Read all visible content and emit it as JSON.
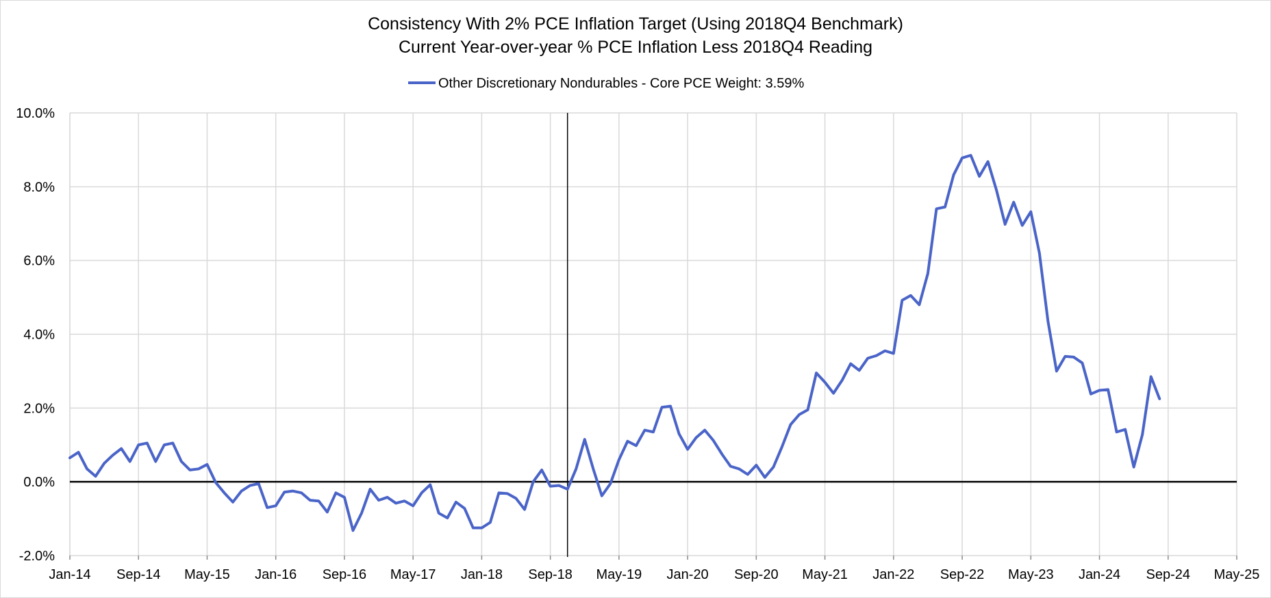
{
  "chart_data": {
    "type": "line",
    "title": "Consistency With 2% PCE Inflation Target (Using 2018Q4 Benchmark)",
    "subtitle": "Current Year-over-year % PCE Inflation Less 2018Q4 Reading",
    "legend_position": "top-center",
    "grid": true,
    "x_start": "2014-01",
    "x_end": "2025-05",
    "ylim": [
      -2,
      10
    ],
    "y_ticks": [
      -2,
      0,
      2,
      4,
      6,
      8,
      10
    ],
    "y_tick_labels": [
      "-2.0%",
      "0.0%",
      "2.0%",
      "4.0%",
      "6.0%",
      "8.0%",
      "10.0%"
    ],
    "x_tick_labels": [
      "Jan-14",
      "Sep-14",
      "May-15",
      "Jan-16",
      "Sep-16",
      "May-17",
      "Jan-18",
      "Sep-18",
      "May-19",
      "Jan-20",
      "Sep-20",
      "May-21",
      "Jan-22",
      "Sep-22",
      "May-23",
      "Jan-24",
      "Sep-24",
      "May-25"
    ],
    "x_tick_dates": [
      "2014-01",
      "2014-09",
      "2015-05",
      "2016-01",
      "2016-09",
      "2017-05",
      "2018-01",
      "2018-09",
      "2019-05",
      "2020-01",
      "2020-09",
      "2021-05",
      "2022-01",
      "2022-09",
      "2023-05",
      "2024-01",
      "2024-09",
      "2025-05"
    ],
    "reference_line_date": "2018-11",
    "colors": {
      "series": "#4a64c8",
      "grid": "#d9d9d9",
      "axis": "#000000"
    },
    "series": [
      {
        "name": "Other Discretionary Nondurables - Core PCE Weight: 3.59%",
        "values": [
          0.65,
          0.8,
          0.35,
          0.15,
          0.5,
          0.72,
          0.9,
          0.55,
          1.0,
          1.05,
          0.55,
          1.0,
          1.05,
          0.55,
          0.32,
          0.35,
          0.47,
          -0.02,
          -0.3,
          -0.55,
          -0.25,
          -0.1,
          -0.05,
          -0.7,
          -0.65,
          -0.28,
          -0.25,
          -0.3,
          -0.5,
          -0.52,
          -0.82,
          -0.3,
          -0.42,
          -1.32,
          -0.85,
          -0.2,
          -0.5,
          -0.42,
          -0.58,
          -0.52,
          -0.65,
          -0.3,
          -0.08,
          -0.85,
          -0.98,
          -0.55,
          -0.72,
          -1.25,
          -1.25,
          -1.1,
          -0.3,
          -0.32,
          -0.45,
          -0.75,
          0.0,
          0.32,
          -0.12,
          -0.1,
          -0.2,
          0.35,
          1.15,
          0.35,
          -0.38,
          -0.05,
          0.6,
          1.1,
          0.98,
          1.4,
          1.35,
          2.02,
          2.05,
          1.3,
          0.88,
          1.2,
          1.4,
          1.12,
          0.75,
          0.42,
          0.35,
          0.2,
          0.45,
          0.12,
          0.4,
          0.95,
          1.55,
          1.82,
          1.95,
          2.95,
          2.7,
          2.4,
          2.75,
          3.2,
          3.02,
          3.35,
          3.42,
          3.55,
          3.48,
          4.92,
          5.05,
          4.8,
          5.65,
          7.4,
          7.45,
          8.32,
          8.78,
          8.85,
          8.28,
          8.68,
          7.9,
          6.98,
          7.58,
          6.95,
          7.32,
          6.2,
          4.35,
          3.0,
          3.4,
          3.38,
          3.22,
          2.38,
          2.48,
          2.5,
          1.35,
          1.42,
          0.4,
          1.28,
          2.85,
          2.25
        ]
      }
    ]
  }
}
